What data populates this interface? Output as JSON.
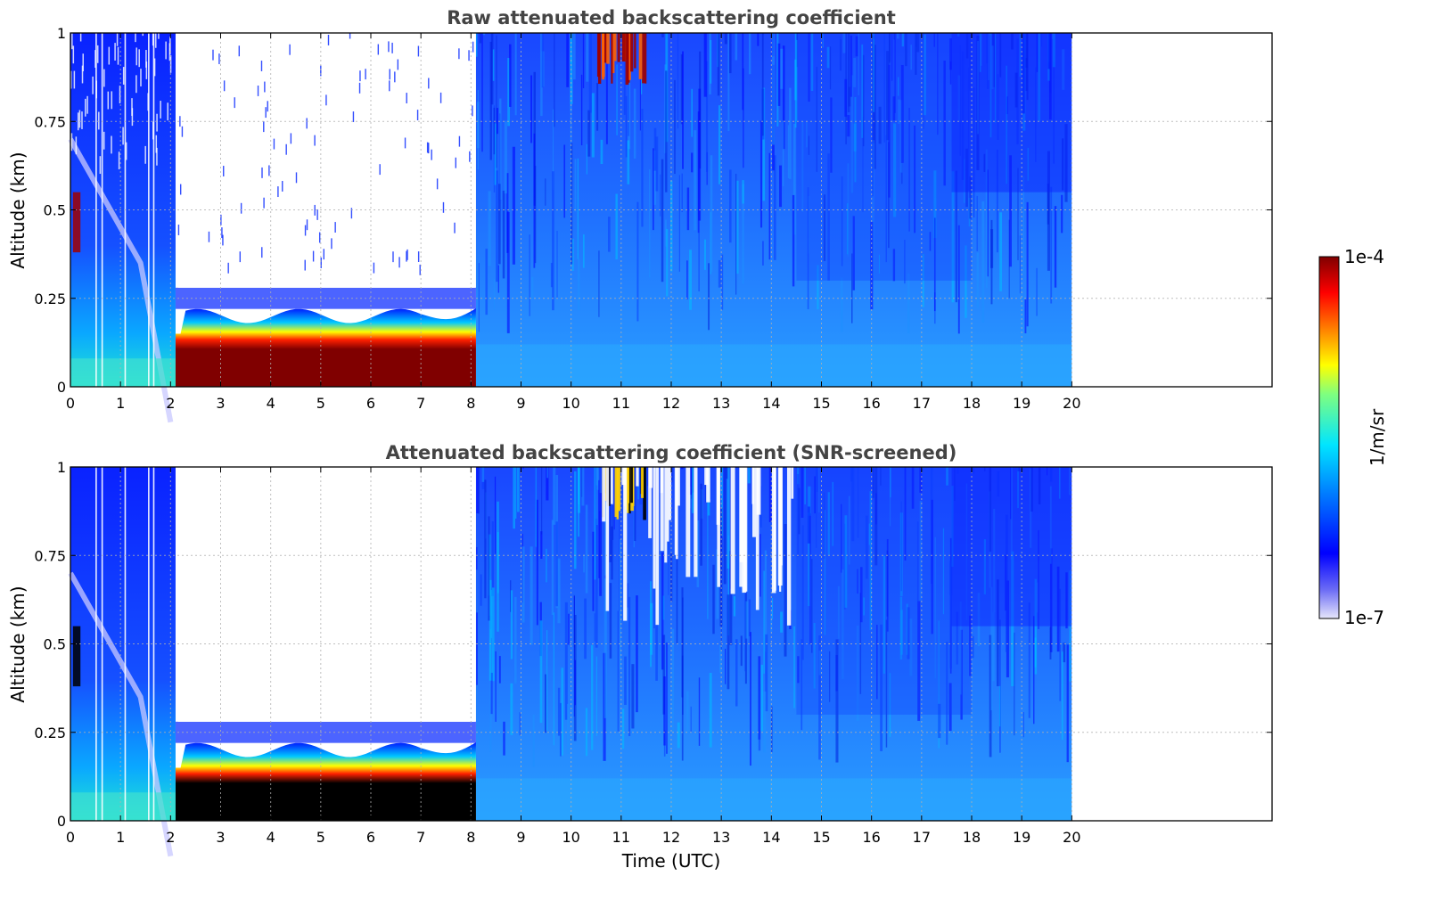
{
  "chart_data": [
    {
      "type": "heatmap",
      "title": "Raw attenuated backscattering coefficient",
      "xlabel": "",
      "ylabel": "Altitude (km)",
      "xlim": [
        0,
        24
      ],
      "ylim": [
        0,
        1
      ],
      "x_ticks": [
        "0",
        "1",
        "2",
        "3",
        "4",
        "5",
        "6",
        "7",
        "8",
        "9",
        "10",
        "11",
        "12",
        "13",
        "14",
        "15",
        "16",
        "17",
        "18",
        "19",
        "20"
      ],
      "y_ticks": [
        "0",
        "0.25",
        "0.5",
        "0.75",
        "1"
      ],
      "data_x_range": [
        0,
        20
      ],
      "grid": true,
      "layers": [
        {
          "feature": "fog/low cloud layer",
          "x_start": 2.1,
          "x_end": 8.1,
          "y_bottom": 0.0,
          "y_top": 0.22,
          "level": "high"
        },
        {
          "feature": "cloud patches",
          "x_start": 10.5,
          "x_end": 11.5,
          "y_bottom": 0.85,
          "y_top": 1.0,
          "level": "high"
        },
        {
          "feature": "no data (screened)",
          "x_start": 2.1,
          "x_end": 8.1,
          "y_bottom": 0.28,
          "y_top": 1.0,
          "level": "none"
        },
        {
          "feature": "residual layer",
          "x_start": 0.0,
          "x_end": 2.0,
          "y_bottom": 0.0,
          "y_top": 0.75,
          "level": "low"
        }
      ]
    },
    {
      "type": "heatmap",
      "title": "Attenuated backscattering coefficient (SNR-screened)",
      "xlabel": "Time (UTC)",
      "ylabel": "Altitude (km)",
      "xlim": [
        0,
        24
      ],
      "ylim": [
        0,
        1
      ],
      "x_ticks": [
        "0",
        "1",
        "2",
        "3",
        "4",
        "5",
        "6",
        "7",
        "8",
        "9",
        "10",
        "11",
        "12",
        "13",
        "14",
        "15",
        "16",
        "17",
        "18",
        "19",
        "20"
      ],
      "y_ticks": [
        "0",
        "0.25",
        "0.5",
        "0.75",
        "1"
      ],
      "data_x_range": [
        0,
        20
      ],
      "grid": true,
      "layers": [
        {
          "feature": "fog/low cloud layer (saturated)",
          "x_start": 2.1,
          "x_end": 8.1,
          "y_bottom": 0.0,
          "y_top": 0.22,
          "level": "saturated"
        },
        {
          "feature": "cloud patches",
          "x_start": 10.5,
          "x_end": 11.5,
          "y_bottom": 0.85,
          "y_top": 1.0,
          "level": "saturated"
        },
        {
          "feature": "no data (screened)",
          "x_start": 2.1,
          "x_end": 8.1,
          "y_bottom": 0.28,
          "y_top": 1.0,
          "level": "none"
        }
      ]
    }
  ],
  "colorbar": {
    "label": "1/m/sr",
    "max_label": "1e-4",
    "min_label": "1e-7",
    "scale": "log",
    "colormap": [
      "#e6e6fa",
      "#0000ff",
      "#00bfff",
      "#00ffbf",
      "#ffff00",
      "#ff8000",
      "#ff0000",
      "#800000"
    ]
  }
}
